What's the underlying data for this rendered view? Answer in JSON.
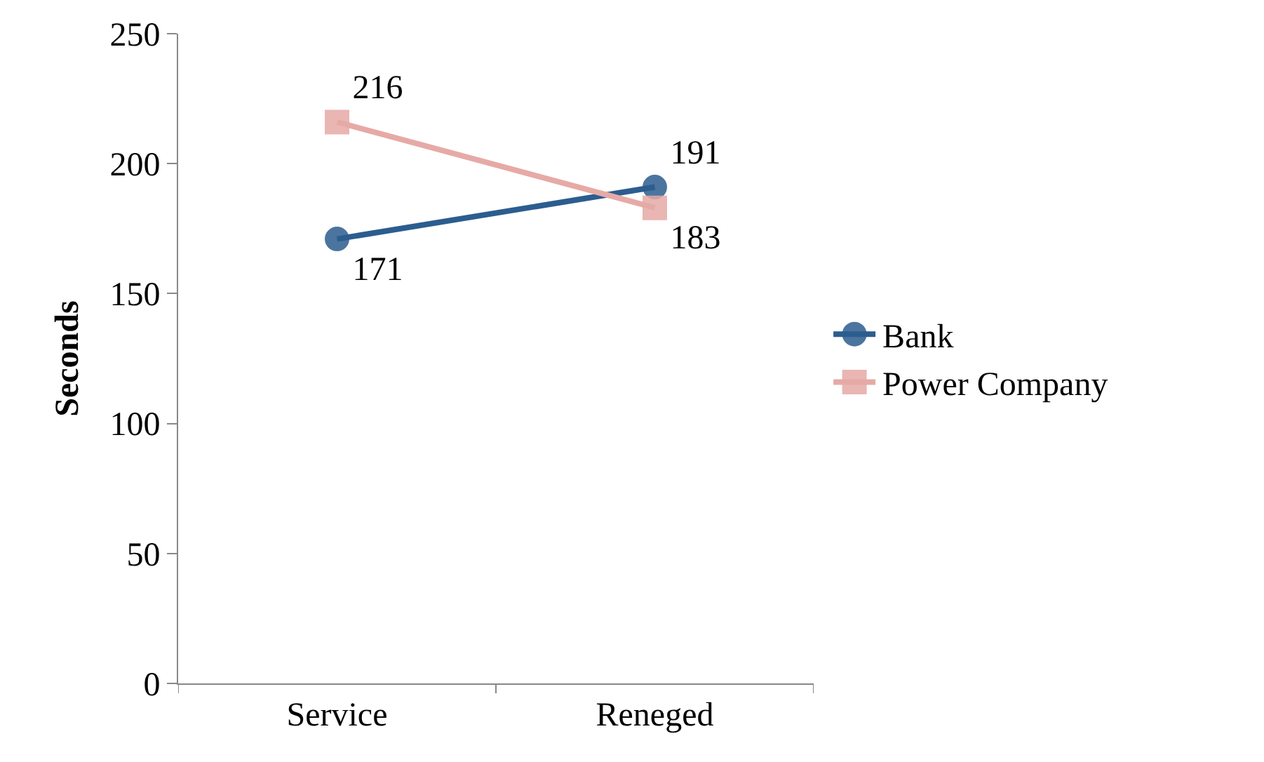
{
  "chart_data": {
    "type": "line",
    "ylabel": "Seconds",
    "categories": [
      "Service",
      "Reneged"
    ],
    "series": [
      {
        "name": "Bank",
        "color": "#2c5d8f",
        "marker": "circle",
        "values": [
          171,
          191
        ]
      },
      {
        "name": "Power Company",
        "color": "#e6aaa6",
        "marker": "square",
        "values": [
          216,
          183
        ]
      }
    ],
    "ylim": [
      0,
      250
    ],
    "yticks": [
      0,
      50,
      100,
      150,
      200,
      250
    ],
    "legend": "right",
    "data_labels": true
  }
}
